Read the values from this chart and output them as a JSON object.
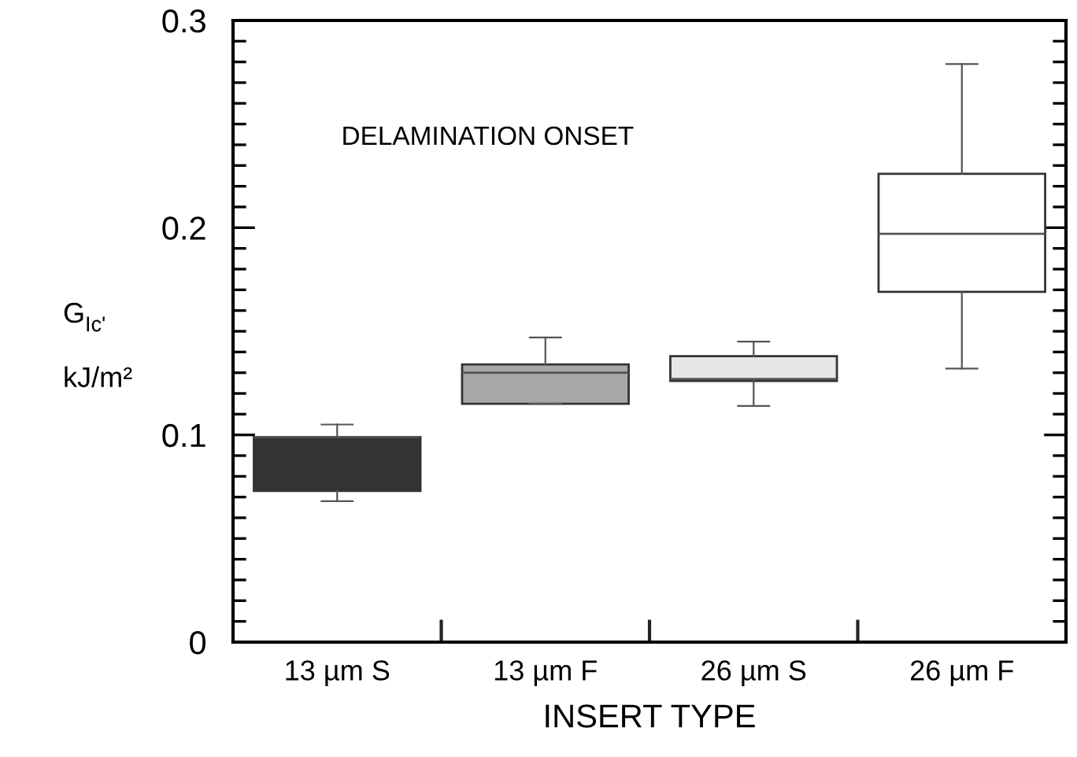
{
  "chart_data": {
    "type": "box",
    "xlabel": "INSERT TYPE",
    "ylabel": "G$_{Ic'}$\nkJ/m²",
    "categories": [
      "13 µm S",
      "13 µm F",
      "26 µm S",
      "26 µm F"
    ],
    "colors": [
      "#333333",
      "#a8a8a8",
      "#e6e6e6",
      "#ffffff"
    ],
    "boxes": [
      {
        "low": 0.068,
        "q1": 0.073,
        "median": 0.099,
        "q3": 0.099,
        "high": 0.105
      },
      {
        "low": 0.115,
        "q1": 0.115,
        "median": 0.13,
        "q3": 0.134,
        "high": 0.147
      },
      {
        "low": 0.114,
        "q1": 0.126,
        "median": 0.127,
        "q3": 0.138,
        "high": 0.145
      },
      {
        "low": 0.132,
        "q1": 0.169,
        "median": 0.197,
        "q3": 0.226,
        "high": 0.279
      }
    ],
    "ylim": [
      0,
      0.3
    ],
    "yticks": [
      0,
      {
        "value": 0.01,
        "label": null
      },
      {
        "value": 0.02,
        "label": null
      },
      {
        "value": 0.03,
        "label": null
      },
      {
        "value": 0.04,
        "label": null
      },
      {
        "value": 0.05,
        "label": null
      },
      {
        "value": 0.06,
        "label": null
      },
      {
        "value": 0.07,
        "label": null
      },
      {
        "value": 0.08,
        "label": null
      },
      {
        "value": 0.09,
        "label": null
      },
      0.1,
      {
        "value": 0.11,
        "label": null
      },
      {
        "value": 0.12,
        "label": null
      },
      {
        "value": 0.13,
        "label": null
      },
      {
        "value": 0.14,
        "label": null
      },
      {
        "value": 0.15,
        "label": null
      },
      {
        "value": 0.16,
        "label": null
      },
      {
        "value": 0.17,
        "label": null
      },
      {
        "value": 0.18,
        "label": null
      },
      {
        "value": 0.19,
        "label": null
      },
      0.2,
      {
        "value": 0.21,
        "label": null
      },
      {
        "value": 0.22,
        "label": null
      },
      {
        "value": 0.23,
        "label": null
      },
      {
        "value": 0.24,
        "label": null
      },
      {
        "value": 0.25,
        "label": null
      },
      {
        "value": 0.26,
        "label": null
      },
      {
        "value": 0.27,
        "label": null
      },
      {
        "value": 0.28,
        "label": null
      },
      {
        "value": 0.29,
        "label": null
      },
      0.3
    ],
    "annotations": [
      "DELAMINATION ONSET"
    ],
    "grid": false,
    "legend": false
  }
}
